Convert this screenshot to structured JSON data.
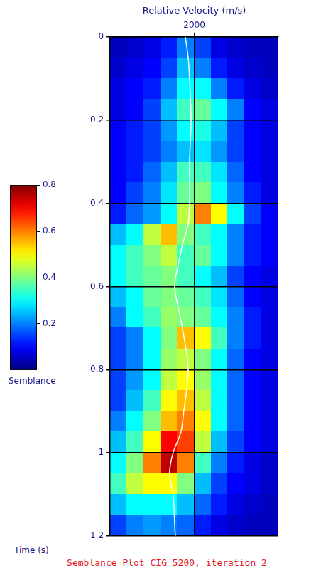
{
  "chart_data": {
    "type": "heatmap",
    "title": "Semblance Plot CIG 5200, iteration 2",
    "xlabel": "Relative Velocity (m/s)",
    "ylabel": "Time (s)",
    "xlim": [
      1500,
      2500
    ],
    "xticks": [
      2000
    ],
    "ylim": [
      0,
      1.2
    ],
    "yticks": [
      0,
      0.2,
      0.4,
      0.6,
      0.8,
      1,
      1.2
    ],
    "grid": true,
    "cells": {
      "x": [
        1550,
        1650,
        1750,
        1850,
        1950,
        2050,
        2150,
        2250,
        2350,
        2450
      ],
      "y": [
        0.025,
        0.075,
        0.125,
        0.175,
        0.225,
        0.275,
        0.325,
        0.375,
        0.425,
        0.475,
        0.525,
        0.575,
        0.625,
        0.675,
        0.725,
        0.775,
        0.825,
        0.875,
        0.925,
        0.975,
        1.025,
        1.075,
        1.125,
        1.175
      ],
      "values": [
        [
          0.05,
          0.06,
          0.08,
          0.12,
          0.2,
          0.15,
          0.08,
          0.06,
          0.05,
          0.05
        ],
        [
          0.06,
          0.08,
          0.1,
          0.15,
          0.25,
          0.2,
          0.12,
          0.08,
          0.06,
          0.05
        ],
        [
          0.08,
          0.1,
          0.12,
          0.2,
          0.3,
          0.3,
          0.2,
          0.12,
          0.08,
          0.06
        ],
        [
          0.08,
          0.1,
          0.15,
          0.25,
          0.35,
          0.38,
          0.3,
          0.2,
          0.1,
          0.08
        ],
        [
          0.1,
          0.12,
          0.15,
          0.22,
          0.3,
          0.32,
          0.25,
          0.15,
          0.1,
          0.08
        ],
        [
          0.1,
          0.12,
          0.15,
          0.2,
          0.25,
          0.28,
          0.22,
          0.15,
          0.1,
          0.08
        ],
        [
          0.1,
          0.12,
          0.18,
          0.25,
          0.35,
          0.35,
          0.28,
          0.18,
          0.1,
          0.08
        ],
        [
          0.1,
          0.15,
          0.2,
          0.28,
          0.38,
          0.4,
          0.3,
          0.2,
          0.12,
          0.08
        ],
        [
          0.12,
          0.18,
          0.22,
          0.3,
          0.45,
          0.6,
          0.5,
          0.3,
          0.15,
          0.1
        ],
        [
          0.25,
          0.3,
          0.45,
          0.55,
          0.4,
          0.35,
          0.3,
          0.2,
          0.12,
          0.1
        ],
        [
          0.3,
          0.35,
          0.4,
          0.45,
          0.35,
          0.38,
          0.3,
          0.2,
          0.12,
          0.1
        ],
        [
          0.3,
          0.35,
          0.38,
          0.4,
          0.35,
          0.3,
          0.25,
          0.15,
          0.1,
          0.08
        ],
        [
          0.25,
          0.3,
          0.38,
          0.4,
          0.38,
          0.35,
          0.28,
          0.18,
          0.1,
          0.08
        ],
        [
          0.2,
          0.3,
          0.35,
          0.42,
          0.4,
          0.38,
          0.3,
          0.2,
          0.12,
          0.08
        ],
        [
          0.15,
          0.2,
          0.3,
          0.4,
          0.55,
          0.5,
          0.35,
          0.2,
          0.12,
          0.08
        ],
        [
          0.15,
          0.2,
          0.3,
          0.42,
          0.45,
          0.4,
          0.3,
          0.18,
          0.1,
          0.08
        ],
        [
          0.15,
          0.22,
          0.3,
          0.45,
          0.5,
          0.42,
          0.3,
          0.18,
          0.1,
          0.08
        ],
        [
          0.15,
          0.25,
          0.35,
          0.5,
          0.55,
          0.45,
          0.3,
          0.18,
          0.1,
          0.08
        ],
        [
          0.2,
          0.3,
          0.4,
          0.55,
          0.6,
          0.5,
          0.3,
          0.18,
          0.1,
          0.08
        ],
        [
          0.25,
          0.35,
          0.5,
          0.7,
          0.65,
          0.45,
          0.25,
          0.15,
          0.1,
          0.08
        ],
        [
          0.3,
          0.4,
          0.6,
          0.75,
          0.6,
          0.35,
          0.2,
          0.12,
          0.08,
          0.06
        ],
        [
          0.35,
          0.45,
          0.5,
          0.5,
          0.4,
          0.25,
          0.15,
          0.1,
          0.08,
          0.06
        ],
        [
          0.25,
          0.3,
          0.3,
          0.3,
          0.25,
          0.18,
          0.12,
          0.08,
          0.06,
          0.05
        ],
        [
          0.15,
          0.2,
          0.22,
          0.2,
          0.18,
          0.12,
          0.08,
          0.06,
          0.05,
          0.05
        ]
      ]
    },
    "colorbar": {
      "label": "Semblance",
      "range": [
        0,
        0.8
      ],
      "ticks": [
        0.2,
        0.4,
        0.6,
        0.8
      ]
    },
    "series": [
      {
        "type": "line",
        "color": "#ffffff",
        "line_style": "solid",
        "x": [
          1947,
          1964,
          1972,
          1981,
          1972,
          1972,
          1964,
          1930,
          1904,
          1883,
          1930,
          1964,
          1938,
          1921,
          1874,
          1853,
          1874,
          1887
        ],
        "y": [
          0,
          0.05,
          0.1,
          0.2,
          0.3,
          0.4,
          0.45,
          0.5,
          0.55,
          0.6,
          0.7,
          0.8,
          0.9,
          0.95,
          1,
          1.05,
          1.1,
          1.2
        ]
      }
    ]
  }
}
